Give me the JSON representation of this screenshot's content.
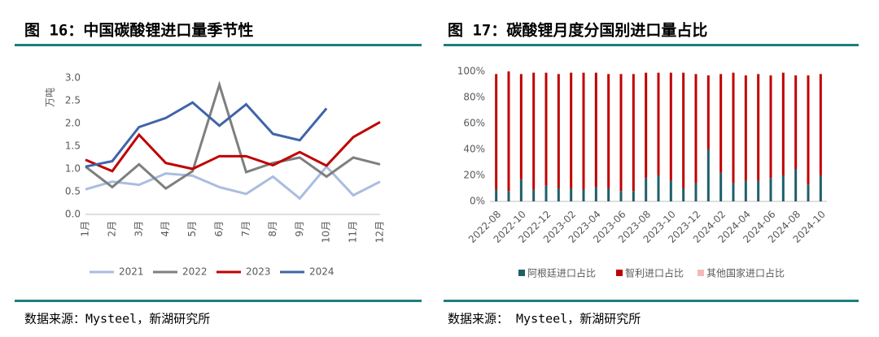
{
  "chart_data": [
    {
      "type": "line",
      "title": "图 16：中国碳酸锂进口量季节性",
      "source": "数据来源：Mysteel，新湖研究所",
      "ylabel": "万吨",
      "categories": [
        "1月",
        "2月",
        "3月",
        "4月",
        "5月",
        "6月",
        "7月",
        "8月",
        "9月",
        "10月",
        "11月",
        "12月"
      ],
      "series": [
        {
          "name": "2021",
          "color": "#a9bde0",
          "values": [
            0.55,
            0.72,
            0.65,
            0.9,
            0.85,
            0.6,
            0.45,
            0.83,
            0.35,
            1.05,
            0.42,
            0.72
          ]
        },
        {
          "name": "2022",
          "color": "#7f7f7f",
          "values": [
            1.05,
            0.6,
            1.1,
            0.57,
            0.95,
            2.85,
            0.93,
            1.13,
            1.25,
            0.83,
            1.25,
            1.1
          ]
        },
        {
          "name": "2023",
          "color": "#c00000",
          "values": [
            1.2,
            0.95,
            1.75,
            1.13,
            1.0,
            1.28,
            1.28,
            1.08,
            1.37,
            1.07,
            1.7,
            2.03
          ]
        },
        {
          "name": "2024",
          "color": "#4064a8",
          "values": [
            1.05,
            1.17,
            1.92,
            2.12,
            2.46,
            1.95,
            2.42,
            1.77,
            1.63,
            2.33,
            null,
            null
          ]
        }
      ],
      "ylim": [
        0,
        3
      ],
      "yticks": [
        {
          "value": 0,
          "label": "0.0"
        },
        {
          "value": 0.5,
          "label": "0.5"
        },
        {
          "value": 1,
          "label": "1.0"
        },
        {
          "value": 1.5,
          "label": "1.5"
        },
        {
          "value": 2,
          "label": "2.0"
        },
        {
          "value": 2.5,
          "label": "2.5"
        },
        {
          "value": 3,
          "label": "3.0"
        }
      ],
      "grid": false,
      "legend": "bottom"
    },
    {
      "type": "stacked_bar",
      "title": "图 17：碳酸锂月度分国别进口量占比",
      "source": "数据来源： Mysteel，新湖研究所",
      "categories": [
        "2022-08",
        null,
        "2022-10",
        null,
        "2022-12",
        null,
        "2023-02",
        null,
        "2023-04",
        null,
        "2023-06",
        null,
        "2023-08",
        null,
        "2023-10",
        null,
        "2023-12",
        null,
        "2024-02",
        null,
        "2024-04",
        null,
        "2024-06",
        null,
        "2024-08",
        null,
        "2024-10"
      ],
      "series": [
        {
          "name": "阿根廷进口占比",
          "color": "#1f5f6b",
          "values": [
            9,
            8,
            17,
            9,
            12,
            10,
            10,
            9,
            11,
            10,
            8,
            8,
            18,
            20,
            16,
            10,
            14,
            40,
            22,
            14,
            16,
            16,
            18,
            20,
            25,
            13,
            20
          ]
        },
        {
          "name": "智利进口占比",
          "color": "#c00000",
          "values": [
            89,
            92,
            81,
            90,
            87,
            88,
            89,
            90,
            88,
            88,
            90,
            90,
            81,
            79,
            83,
            89,
            84,
            57,
            76,
            85,
            81,
            82,
            79,
            79,
            72,
            84,
            78
          ]
        },
        {
          "name": "其他国家进口占比",
          "color": "#f4b8b8",
          "values": [
            0.3,
            0.3,
            0.3,
            0.3,
            0.3,
            0.3,
            0.3,
            0.3,
            0.3,
            0.3,
            0.3,
            0.3,
            0.3,
            0.3,
            0.3,
            0.3,
            0.3,
            0.3,
            0.3,
            0.3,
            0.3,
            0.3,
            0.3,
            0.3,
            0.3,
            0.3,
            0.3
          ]
        }
      ],
      "ylim": [
        0,
        100
      ],
      "yticks": [
        {
          "value": 0,
          "label": "0%"
        },
        {
          "value": 20,
          "label": "20%"
        },
        {
          "value": 40,
          "label": "40%"
        },
        {
          "value": 60,
          "label": "60%"
        },
        {
          "value": 80,
          "label": "80%"
        },
        {
          "value": 100,
          "label": "100%"
        }
      ],
      "grid": false,
      "legend": "bottom"
    }
  ]
}
